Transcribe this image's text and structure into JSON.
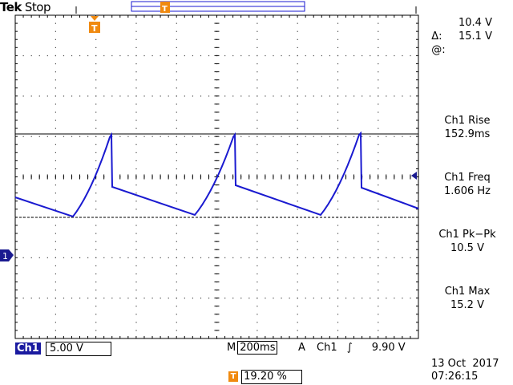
{
  "header": {
    "brand": "Tek",
    "run_state": "Stop"
  },
  "cursors": {
    "delta_symbol": "Δ:",
    "delta_value": "10.4 V",
    "at_symbol": "@:",
    "at_value": "15.1 V"
  },
  "measurements": [
    {
      "label": "Ch1 Rise",
      "value": "152.9ms"
    },
    {
      "label": "Ch1 Freq",
      "value": "1.606 Hz"
    },
    {
      "label": "Ch1 Pk−Pk",
      "value": "10.5 V"
    },
    {
      "label": "Ch1 Max",
      "value": "15.2 V"
    }
  ],
  "footer": {
    "channel": "Ch1",
    "volts_div": "5.00 V",
    "timebase_prefix": "M",
    "timebase": "200ms",
    "trigger_mode": "A",
    "trigger_channel": "Ch1",
    "trigger_slope_symbol": "∫",
    "trigger_level": "9.90 V",
    "trigger_position_icon": "T",
    "trigger_position": "19.20 %",
    "date": "13 Oct  2017",
    "time": "07:26:15"
  },
  "markers": {
    "channel1_marker": "1",
    "trigger_marker": "T"
  },
  "colors": {
    "trace": "#1a1ad0",
    "accent": "#f08a10",
    "ch1_badge": "#1a1aa0"
  }
}
